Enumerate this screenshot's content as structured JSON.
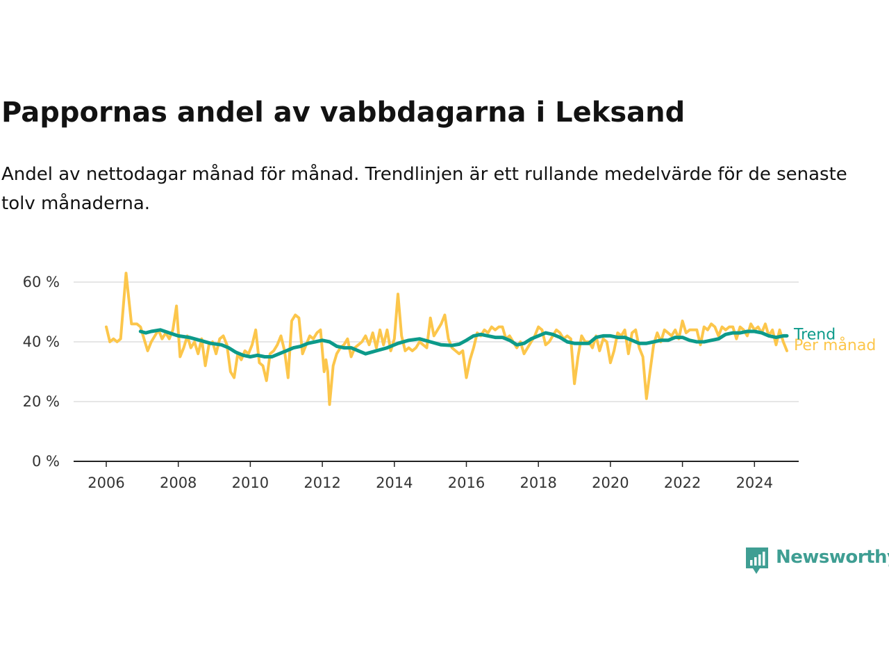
{
  "header": {
    "title": "Pappornas andel av vabbdagarna i Leksand",
    "subtitle": "Andel av nettodagar månad för månad. Trendlinjen är ett rullande medelvärde för de senaste tolv månaderna."
  },
  "brand": {
    "name": "Newsworthy",
    "color": "#3f9e93",
    "icon": "chart-bubble-icon"
  },
  "chart_data": {
    "type": "line",
    "title": "Pappornas andel av vabbdagarna i Leksand",
    "subtitle": "Andel av nettodagar månad för månad. Trendlinjen är ett rullande medelvärde för de senaste tolv månaderna.",
    "xlabel": "",
    "ylabel": "",
    "x_ticks": [
      "2006",
      "2008",
      "2010",
      "2012",
      "2014",
      "2016",
      "2018",
      "2020",
      "2022",
      "2024"
    ],
    "y_ticks": [
      "0 %",
      "20 %",
      "40 %",
      "60 %"
    ],
    "xlim": [
      2005.75,
      2025.25
    ],
    "ylim": [
      0,
      65
    ],
    "grid": "horizontal",
    "legend": "inline-right",
    "colors": {
      "monthly": "#fcc64b",
      "trend": "#0c9a8a",
      "grid": "#dddddd",
      "axis": "#222222"
    },
    "series": [
      {
        "name": "Per månad",
        "key": "monthly",
        "color": "#fcc64b",
        "points": [
          [
            2006.0,
            45
          ],
          [
            2006.1,
            40
          ],
          [
            2006.2,
            41
          ],
          [
            2006.3,
            40
          ],
          [
            2006.4,
            41
          ],
          [
            2006.55,
            63
          ],
          [
            2006.7,
            46
          ],
          [
            2006.85,
            46
          ],
          [
            2006.95,
            45
          ],
          [
            2007.05,
            41
          ],
          [
            2007.15,
            37
          ],
          [
            2007.25,
            40
          ],
          [
            2007.35,
            42
          ],
          [
            2007.45,
            44
          ],
          [
            2007.55,
            41
          ],
          [
            2007.65,
            43
          ],
          [
            2007.75,
            41
          ],
          [
            2007.85,
            44
          ],
          [
            2007.95,
            52
          ],
          [
            2008.05,
            35
          ],
          [
            2008.15,
            38
          ],
          [
            2008.25,
            42
          ],
          [
            2008.35,
            38
          ],
          [
            2008.45,
            40
          ],
          [
            2008.55,
            36
          ],
          [
            2008.65,
            41
          ],
          [
            2008.75,
            32
          ],
          [
            2008.85,
            39
          ],
          [
            2008.95,
            40
          ],
          [
            2009.05,
            36
          ],
          [
            2009.15,
            41
          ],
          [
            2009.25,
            42
          ],
          [
            2009.35,
            39
          ],
          [
            2009.45,
            30
          ],
          [
            2009.55,
            28
          ],
          [
            2009.65,
            36
          ],
          [
            2009.75,
            34
          ],
          [
            2009.85,
            37
          ],
          [
            2009.95,
            36
          ],
          [
            2010.05,
            39
          ],
          [
            2010.15,
            44
          ],
          [
            2010.25,
            33
          ],
          [
            2010.35,
            32
          ],
          [
            2010.45,
            27
          ],
          [
            2010.55,
            36
          ],
          [
            2010.65,
            37
          ],
          [
            2010.75,
            39
          ],
          [
            2010.85,
            42
          ],
          [
            2010.95,
            37
          ],
          [
            2011.05,
            28
          ],
          [
            2011.15,
            47
          ],
          [
            2011.25,
            49
          ],
          [
            2011.35,
            48
          ],
          [
            2011.45,
            36
          ],
          [
            2011.55,
            39
          ],
          [
            2011.65,
            42
          ],
          [
            2011.75,
            41
          ],
          [
            2011.85,
            43
          ],
          [
            2011.95,
            44
          ],
          [
            2012.05,
            30
          ],
          [
            2012.1,
            34
          ],
          [
            2012.15,
            30
          ],
          [
            2012.2,
            19
          ],
          [
            2012.3,
            32
          ],
          [
            2012.4,
            36
          ],
          [
            2012.5,
            38
          ],
          [
            2012.6,
            39
          ],
          [
            2012.7,
            41
          ],
          [
            2012.8,
            35
          ],
          [
            2012.9,
            38
          ],
          [
            2013.0,
            39
          ],
          [
            2013.1,
            40
          ],
          [
            2013.2,
            42
          ],
          [
            2013.3,
            39
          ],
          [
            2013.4,
            43
          ],
          [
            2013.5,
            38
          ],
          [
            2013.6,
            44
          ],
          [
            2013.7,
            39
          ],
          [
            2013.8,
            44
          ],
          [
            2013.9,
            37
          ],
          [
            2014.0,
            41
          ],
          [
            2014.1,
            56
          ],
          [
            2014.2,
            42
          ],
          [
            2014.3,
            37
          ],
          [
            2014.4,
            38
          ],
          [
            2014.5,
            37
          ],
          [
            2014.6,
            38
          ],
          [
            2014.7,
            40
          ],
          [
            2014.8,
            39
          ],
          [
            2014.9,
            38
          ],
          [
            2015.0,
            48
          ],
          [
            2015.1,
            42
          ],
          [
            2015.2,
            44
          ],
          [
            2015.3,
            46
          ],
          [
            2015.4,
            49
          ],
          [
            2015.5,
            41
          ],
          [
            2015.6,
            38
          ],
          [
            2015.7,
            37
          ],
          [
            2015.8,
            36
          ],
          [
            2015.9,
            37
          ],
          [
            2016.0,
            28
          ],
          [
            2016.1,
            34
          ],
          [
            2016.2,
            38
          ],
          [
            2016.3,
            43
          ],
          [
            2016.4,
            42
          ],
          [
            2016.5,
            44
          ],
          [
            2016.6,
            43
          ],
          [
            2016.7,
            45
          ],
          [
            2016.8,
            44
          ],
          [
            2016.9,
            45
          ],
          [
            2017.0,
            45
          ],
          [
            2017.1,
            41
          ],
          [
            2017.2,
            42
          ],
          [
            2017.3,
            40
          ],
          [
            2017.4,
            38
          ],
          [
            2017.5,
            40
          ],
          [
            2017.6,
            36
          ],
          [
            2017.7,
            38
          ],
          [
            2017.8,
            40
          ],
          [
            2017.9,
            42
          ],
          [
            2018.0,
            45
          ],
          [
            2018.1,
            44
          ],
          [
            2018.2,
            39
          ],
          [
            2018.3,
            40
          ],
          [
            2018.4,
            42
          ],
          [
            2018.5,
            44
          ],
          [
            2018.6,
            43
          ],
          [
            2018.7,
            41
          ],
          [
            2018.8,
            42
          ],
          [
            2018.9,
            41
          ],
          [
            2019.0,
            26
          ],
          [
            2019.1,
            35
          ],
          [
            2019.2,
            42
          ],
          [
            2019.3,
            40
          ],
          [
            2019.4,
            40
          ],
          [
            2019.5,
            38
          ],
          [
            2019.6,
            42
          ],
          [
            2019.7,
            37
          ],
          [
            2019.8,
            41
          ],
          [
            2019.9,
            40
          ],
          [
            2020.0,
            33
          ],
          [
            2020.1,
            37
          ],
          [
            2020.2,
            43
          ],
          [
            2020.3,
            42
          ],
          [
            2020.4,
            44
          ],
          [
            2020.5,
            36
          ],
          [
            2020.6,
            43
          ],
          [
            2020.7,
            44
          ],
          [
            2020.8,
            38
          ],
          [
            2020.9,
            35
          ],
          [
            2021.0,
            21
          ],
          [
            2021.1,
            30
          ],
          [
            2021.2,
            39
          ],
          [
            2021.3,
            43
          ],
          [
            2021.4,
            40
          ],
          [
            2021.5,
            44
          ],
          [
            2021.6,
            43
          ],
          [
            2021.7,
            42
          ],
          [
            2021.8,
            44
          ],
          [
            2021.9,
            41
          ],
          [
            2022.0,
            47
          ],
          [
            2022.1,
            43
          ],
          [
            2022.2,
            44
          ],
          [
            2022.3,
            44
          ],
          [
            2022.4,
            44
          ],
          [
            2022.5,
            39
          ],
          [
            2022.6,
            45
          ],
          [
            2022.7,
            44
          ],
          [
            2022.8,
            46
          ],
          [
            2022.9,
            45
          ],
          [
            2023.0,
            42
          ],
          [
            2023.1,
            45
          ],
          [
            2023.2,
            44
          ],
          [
            2023.3,
            45
          ],
          [
            2023.4,
            45
          ],
          [
            2023.5,
            41
          ],
          [
            2023.6,
            45
          ],
          [
            2023.7,
            44
          ],
          [
            2023.8,
            42
          ],
          [
            2023.9,
            46
          ],
          [
            2024.0,
            44
          ],
          [
            2024.1,
            45
          ],
          [
            2024.2,
            43
          ],
          [
            2024.3,
            46
          ],
          [
            2024.4,
            42
          ],
          [
            2024.5,
            44
          ],
          [
            2024.6,
            39
          ],
          [
            2024.7,
            44
          ],
          [
            2024.8,
            40
          ],
          [
            2024.9,
            37
          ]
        ]
      },
      {
        "name": "Trend",
        "key": "trend",
        "color": "#0c9a8a",
        "points": [
          [
            2006.95,
            43.5
          ],
          [
            2007.1,
            43.0
          ],
          [
            2007.25,
            43.5
          ],
          [
            2007.5,
            44.0
          ],
          [
            2007.75,
            43.0
          ],
          [
            2008.0,
            42.0
          ],
          [
            2008.3,
            41.5
          ],
          [
            2008.6,
            40.5
          ],
          [
            2008.9,
            39.5
          ],
          [
            2009.2,
            39.0
          ],
          [
            2009.4,
            38.0
          ],
          [
            2009.6,
            36.5
          ],
          [
            2009.8,
            35.5
          ],
          [
            2010.0,
            35.0
          ],
          [
            2010.2,
            35.5
          ],
          [
            2010.4,
            35.0
          ],
          [
            2010.6,
            35.0
          ],
          [
            2010.8,
            36.0
          ],
          [
            2011.0,
            37.0
          ],
          [
            2011.2,
            38.0
          ],
          [
            2011.4,
            38.5
          ],
          [
            2011.6,
            39.5
          ],
          [
            2011.8,
            40.0
          ],
          [
            2012.0,
            40.5
          ],
          [
            2012.2,
            40.0
          ],
          [
            2012.4,
            38.5
          ],
          [
            2012.6,
            38.0
          ],
          [
            2012.8,
            38.0
          ],
          [
            2013.0,
            37.0
          ],
          [
            2013.2,
            36.0
          ],
          [
            2013.5,
            37.0
          ],
          [
            2013.8,
            38.0
          ],
          [
            2014.1,
            39.5
          ],
          [
            2014.4,
            40.5
          ],
          [
            2014.7,
            41.0
          ],
          [
            2015.0,
            40.0
          ],
          [
            2015.3,
            39.0
          ],
          [
            2015.6,
            38.8
          ],
          [
            2015.8,
            39.2
          ],
          [
            2016.0,
            40.5
          ],
          [
            2016.2,
            42.0
          ],
          [
            2016.4,
            42.5
          ],
          [
            2016.6,
            42.0
          ],
          [
            2016.8,
            41.5
          ],
          [
            2017.0,
            41.5
          ],
          [
            2017.2,
            40.5
          ],
          [
            2017.4,
            39.0
          ],
          [
            2017.6,
            39.5
          ],
          [
            2017.8,
            41.0
          ],
          [
            2018.0,
            42.0
          ],
          [
            2018.2,
            43.0
          ],
          [
            2018.4,
            42.5
          ],
          [
            2018.6,
            41.5
          ],
          [
            2018.8,
            40.0
          ],
          [
            2019.0,
            39.5
          ],
          [
            2019.2,
            39.5
          ],
          [
            2019.4,
            39.5
          ],
          [
            2019.6,
            41.5
          ],
          [
            2019.8,
            42.0
          ],
          [
            2020.0,
            42.0
          ],
          [
            2020.2,
            41.5
          ],
          [
            2020.4,
            41.5
          ],
          [
            2020.6,
            40.5
          ],
          [
            2020.8,
            39.5
          ],
          [
            2021.0,
            39.5
          ],
          [
            2021.2,
            40.0
          ],
          [
            2021.4,
            40.5
          ],
          [
            2021.6,
            40.5
          ],
          [
            2021.8,
            41.5
          ],
          [
            2022.0,
            41.5
          ],
          [
            2022.2,
            40.5
          ],
          [
            2022.4,
            40.0
          ],
          [
            2022.6,
            40.0
          ],
          [
            2022.8,
            40.5
          ],
          [
            2023.0,
            41.0
          ],
          [
            2023.2,
            42.5
          ],
          [
            2023.4,
            43.0
          ],
          [
            2023.6,
            43.0
          ],
          [
            2023.8,
            43.5
          ],
          [
            2024.0,
            43.5
          ],
          [
            2024.2,
            43.0
          ],
          [
            2024.4,
            42.0
          ],
          [
            2024.6,
            41.5
          ],
          [
            2024.8,
            42.0
          ],
          [
            2024.9,
            42.0
          ]
        ]
      }
    ]
  }
}
